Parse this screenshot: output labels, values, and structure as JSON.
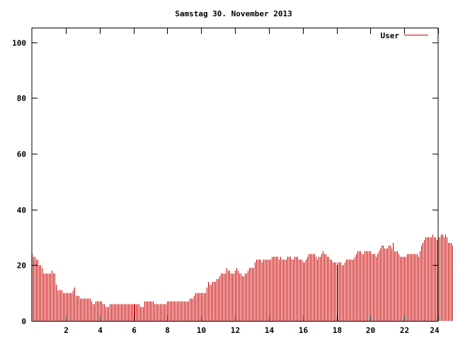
{
  "chart_data": {
    "type": "bar",
    "title": "Samstag 30. November 2013",
    "xlabel": "",
    "ylabel": "",
    "xlim": [
      0,
      24
    ],
    "ylim": [
      0,
      105
    ],
    "x_ticks": [
      "2",
      "4",
      "6",
      "8",
      "10",
      "12",
      "14",
      "16",
      "18",
      "20",
      "22",
      "24"
    ],
    "y_ticks": [
      "0",
      "20",
      "40",
      "60",
      "80",
      "100"
    ],
    "grid": false,
    "legend_position": "top-right",
    "interval_minutes": 5,
    "series": [
      {
        "name": "User",
        "color": "#cc0000",
        "values": [
          24,
          23,
          23,
          22,
          22,
          20,
          20,
          19,
          17,
          17,
          17,
          17,
          17,
          17,
          18,
          17,
          17,
          13,
          11,
          11,
          11,
          11,
          10,
          10,
          10,
          10,
          10,
          10,
          10,
          11,
          12,
          9,
          9,
          9,
          8,
          8,
          8,
          8,
          8,
          8,
          8,
          8,
          7,
          6,
          6,
          7,
          7,
          7,
          7,
          7,
          6,
          6,
          5,
          5,
          5,
          6,
          6,
          6,
          6,
          6,
          6,
          6,
          6,
          6,
          6,
          6,
          6,
          6,
          6,
          6,
          6,
          6,
          6,
          6,
          6,
          6,
          6,
          5,
          5,
          5,
          7,
          7,
          7,
          7,
          7,
          7,
          7,
          6,
          6,
          6,
          6,
          6,
          6,
          6,
          6,
          6,
          7,
          7,
          7,
          7,
          7,
          7,
          7,
          7,
          7,
          7,
          7,
          7,
          7,
          7,
          7,
          7,
          8,
          8,
          8,
          9,
          10,
          10,
          10,
          10,
          10,
          10,
          10,
          10,
          12,
          14,
          13,
          13,
          14,
          14,
          14,
          15,
          15,
          16,
          17,
          17,
          17,
          17,
          19,
          18,
          18,
          17,
          17,
          17,
          18,
          19,
          18,
          17,
          17,
          16,
          16,
          17,
          17,
          18,
          19,
          19,
          19,
          19,
          21,
          22,
          22,
          22,
          22,
          21,
          22,
          22,
          22,
          22,
          22,
          22,
          23,
          23,
          23,
          23,
          23,
          22,
          23,
          22,
          22,
          22,
          22,
          23,
          23,
          23,
          22,
          22,
          23,
          23,
          23,
          22,
          22,
          22,
          21,
          21,
          22,
          23,
          24,
          24,
          24,
          24,
          24,
          23,
          22,
          23,
          23,
          24,
          25,
          24,
          24,
          23,
          23,
          22,
          22,
          21,
          21,
          21,
          20,
          21,
          21,
          21,
          20,
          20,
          21,
          22,
          22,
          22,
          22,
          22,
          22,
          23,
          24,
          25,
          25,
          25,
          24,
          24,
          25,
          25,
          25,
          25,
          25,
          24,
          24,
          24,
          23,
          24,
          25,
          26,
          27,
          27,
          26,
          26,
          26,
          27,
          27,
          26,
          28,
          25,
          25,
          25,
          24,
          23,
          23,
          23,
          23,
          23,
          24,
          24,
          24,
          24,
          24,
          24,
          24,
          24,
          23,
          25,
          27,
          28,
          29,
          30,
          30,
          30,
          30,
          30,
          31,
          30,
          30,
          29,
          30,
          30,
          31,
          31,
          30,
          31,
          30,
          28,
          28,
          28,
          27,
          27,
          26,
          26,
          28
        ]
      }
    ]
  }
}
